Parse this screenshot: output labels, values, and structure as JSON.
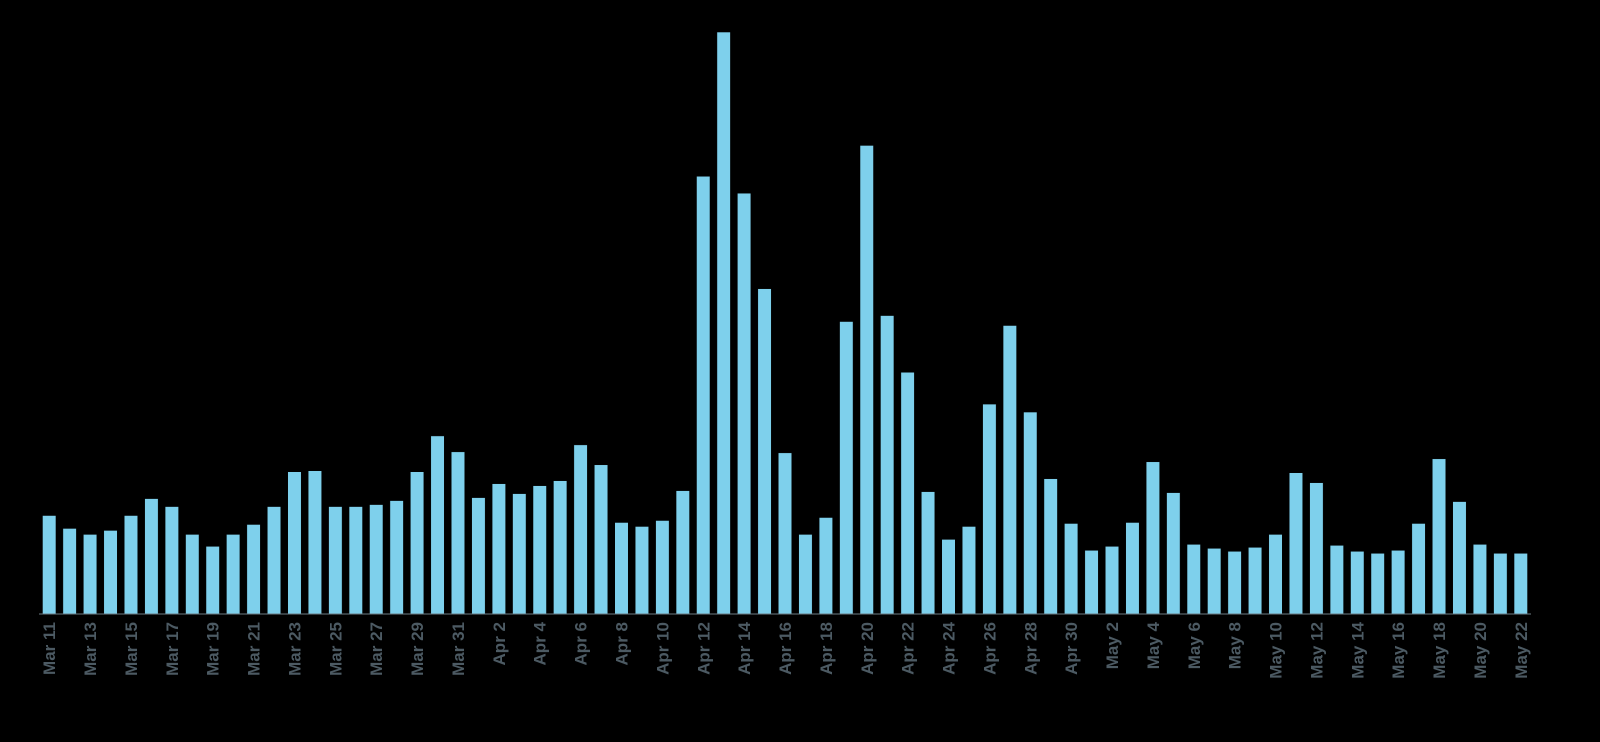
{
  "chart_data": {
    "type": "bar",
    "title": "",
    "xlabel": "",
    "ylabel": "",
    "ylim": [
      0,
      580
    ],
    "grid": false,
    "bar_color": "#7ed0ec",
    "tick_color": "#4c5a63",
    "background": "#000000",
    "categories": [
      "Mar 11",
      "Mar 12",
      "Mar 13",
      "Mar 14",
      "Mar 15",
      "Mar 16",
      "Mar 17",
      "Mar 18",
      "Mar 19",
      "Mar 20",
      "Mar 21",
      "Mar 22",
      "Mar 23",
      "Mar 24",
      "Mar 25",
      "Mar 26",
      "Mar 27",
      "Mar 28",
      "Mar 29",
      "Mar 30",
      "Mar 31",
      "Apr 1",
      "Apr 2",
      "Apr 3",
      "Apr 4",
      "Apr 5",
      "Apr 6",
      "Apr 7",
      "Apr 8",
      "Apr 9",
      "Apr 10",
      "Apr 11",
      "Apr 12",
      "Apr 13",
      "Apr 14",
      "Apr 15",
      "Apr 16",
      "Apr 17",
      "Apr 18",
      "Apr 19",
      "Apr 20",
      "Apr 21",
      "Apr 22",
      "Apr 23",
      "Apr 24",
      "Apr 25",
      "Apr 26",
      "Apr 27",
      "Apr 28",
      "Apr 29",
      "Apr 30",
      "May 1",
      "May 2",
      "May 3",
      "May 4",
      "May 5",
      "May 6",
      "May 7",
      "May 8",
      "May 9",
      "May 10",
      "May 11",
      "May 12",
      "May 13",
      "May 14",
      "May 15",
      "May 16",
      "May 17",
      "May 18",
      "May 19",
      "May 20",
      "May 21",
      "May 22"
    ],
    "tick_labels": [
      "Mar 11",
      "Mar 13",
      "Mar 15",
      "Mar 17",
      "Mar 19",
      "Mar 21",
      "Mar 23",
      "Mar 25",
      "Mar 27",
      "Mar 29",
      "Mar 31",
      "Apr 2",
      "Apr 4",
      "Apr 6",
      "Apr 8",
      "Apr 10",
      "Apr 12",
      "Apr 14",
      "Apr 16",
      "Apr 18",
      "Apr 20",
      "Apr 22",
      "Apr 24",
      "Apr 26",
      "Apr 28",
      "Apr 30",
      "May 2",
      "May 4",
      "May 6",
      "May 8",
      "May 10",
      "May 12",
      "May 14",
      "May 16",
      "May 18",
      "May 20",
      "May 22"
    ],
    "values": [
      99,
      86,
      80,
      84,
      99,
      116,
      108,
      80,
      68,
      80,
      90,
      108,
      143,
      144,
      108,
      108,
      110,
      114,
      143,
      179,
      163,
      117,
      131,
      121,
      129,
      134,
      170,
      150,
      92,
      88,
      94,
      124,
      440,
      585,
      423,
      327,
      162,
      80,
      97,
      294,
      471,
      300,
      243,
      123,
      75,
      88,
      211,
      290,
      203,
      136,
      91,
      64,
      68,
      92,
      153,
      122,
      70,
      66,
      63,
      67,
      80,
      142,
      132,
      69,
      63,
      61,
      64,
      91,
      156,
      113,
      70,
      61,
      61
    ]
  }
}
